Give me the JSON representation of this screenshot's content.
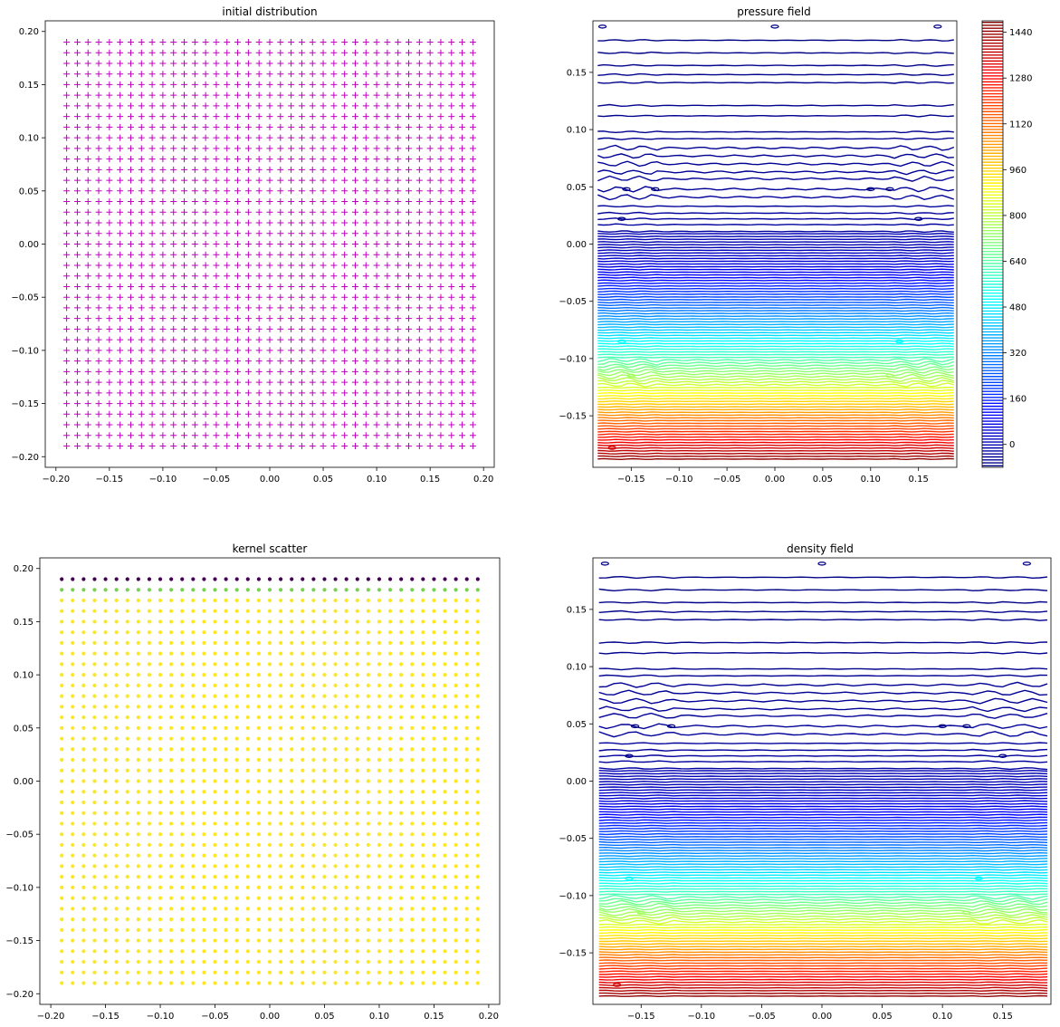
{
  "figure": {
    "background": "#ffffff"
  },
  "chart_data": [
    {
      "id": "p1",
      "type": "scatter",
      "title": "initial distribution",
      "marker": "+",
      "color": "#bf00bf",
      "grid_x": {
        "start": -0.19,
        "stop": 0.19,
        "step": 0.01
      },
      "grid_y": {
        "start": -0.19,
        "stop": 0.19,
        "step": 0.01
      },
      "xlim": [
        -0.21,
        0.21
      ],
      "ylim": [
        -0.21,
        0.21
      ],
      "xticks": [
        -0.2,
        -0.15,
        -0.1,
        -0.05,
        0.0,
        0.05,
        0.1,
        0.15,
        0.2
      ],
      "xticklabels": [
        "−0.20",
        "−0.15",
        "−0.10",
        "−0.05",
        "0.00",
        "0.05",
        "0.10",
        "0.15",
        "0.20"
      ],
      "yticks": [
        0.2,
        0.15,
        0.1,
        0.05,
        0.0,
        -0.05,
        -0.1,
        -0.15,
        -0.2
      ],
      "yticklabels": [
        "0.20",
        "0.15",
        "0.10",
        "0.05",
        "0.00",
        "−0.05",
        "−0.10",
        "−0.15",
        "−0.20"
      ]
    },
    {
      "id": "p2",
      "type": "contour",
      "title": "pressure field",
      "colormap": "jet",
      "xlim": [
        -0.19,
        0.19
      ],
      "ylim": [
        -0.195,
        0.195
      ],
      "xticks": [
        -0.15,
        -0.1,
        -0.05,
        0.0,
        0.05,
        0.1,
        0.15
      ],
      "xticklabels": [
        "−0.15",
        "−0.10",
        "−0.05",
        "0.00",
        "0.05",
        "0.10",
        "0.15"
      ],
      "yticks": [
        0.15,
        0.1,
        0.05,
        0.0,
        -0.05,
        -0.1,
        -0.15
      ],
      "yticklabels": [
        "0.15",
        "0.10",
        "0.05",
        "0.00",
        "−0.05",
        "−0.10",
        "−0.15"
      ],
      "value_range": [
        -80,
        1480
      ],
      "colorbar": {
        "ticks": [
          1440,
          1280,
          1120,
          960,
          800,
          640,
          480,
          320,
          160,
          0
        ],
        "ticklabels": [
          "1440",
          "1280",
          "1120",
          "960",
          "800",
          "640",
          "480",
          "320",
          "160",
          "0"
        ]
      }
    },
    {
      "id": "p3",
      "type": "scatter",
      "title": "kernel scatter",
      "marker": "o",
      "grid_x": {
        "start": -0.19,
        "stop": 0.19,
        "step": 0.01
      },
      "grid_y": {
        "start": -0.19,
        "stop": 0.19,
        "step": 0.01
      },
      "row_colors": [
        {
          "y": 0.19,
          "color": "#440154"
        },
        {
          "y": 0.18,
          "color": "#7ad151"
        },
        {
          "y": "other",
          "color": "#fde725"
        }
      ],
      "xlim": [
        -0.21,
        0.21
      ],
      "ylim": [
        -0.21,
        0.21
      ],
      "xticks": [
        -0.2,
        -0.15,
        -0.1,
        -0.05,
        0.0,
        0.05,
        0.1,
        0.15,
        0.2
      ],
      "xticklabels": [
        "−0.20",
        "−0.15",
        "−0.10",
        "−0.05",
        "0.00",
        "0.05",
        "0.10",
        "0.15",
        "0.20"
      ],
      "yticks": [
        0.2,
        0.15,
        0.1,
        0.05,
        0.0,
        -0.05,
        -0.1,
        -0.15,
        -0.2
      ],
      "yticklabels": [
        "0.20",
        "0.15",
        "0.10",
        "0.05",
        "0.00",
        "−0.05",
        "−0.10",
        "−0.15",
        "−0.20"
      ]
    },
    {
      "id": "p4",
      "type": "contour",
      "title": "density field",
      "colormap": "jet",
      "xlim": [
        -0.19,
        0.19
      ],
      "ylim": [
        -0.195,
        0.195
      ],
      "xticks": [
        -0.15,
        -0.1,
        -0.05,
        0.0,
        0.05,
        0.1,
        0.15
      ],
      "xticklabels": [
        "−0.15",
        "−0.10",
        "−0.05",
        "0.00",
        "0.05",
        "0.10",
        "0.15"
      ],
      "yticks": [
        0.15,
        0.1,
        0.05,
        0.0,
        -0.05,
        -0.1,
        -0.15
      ],
      "yticklabels": [
        "0.15",
        "0.10",
        "0.05",
        "0.00",
        "−0.05",
        "−0.10",
        "−0.15"
      ],
      "value_range": [
        -80,
        1480
      ]
    }
  ]
}
